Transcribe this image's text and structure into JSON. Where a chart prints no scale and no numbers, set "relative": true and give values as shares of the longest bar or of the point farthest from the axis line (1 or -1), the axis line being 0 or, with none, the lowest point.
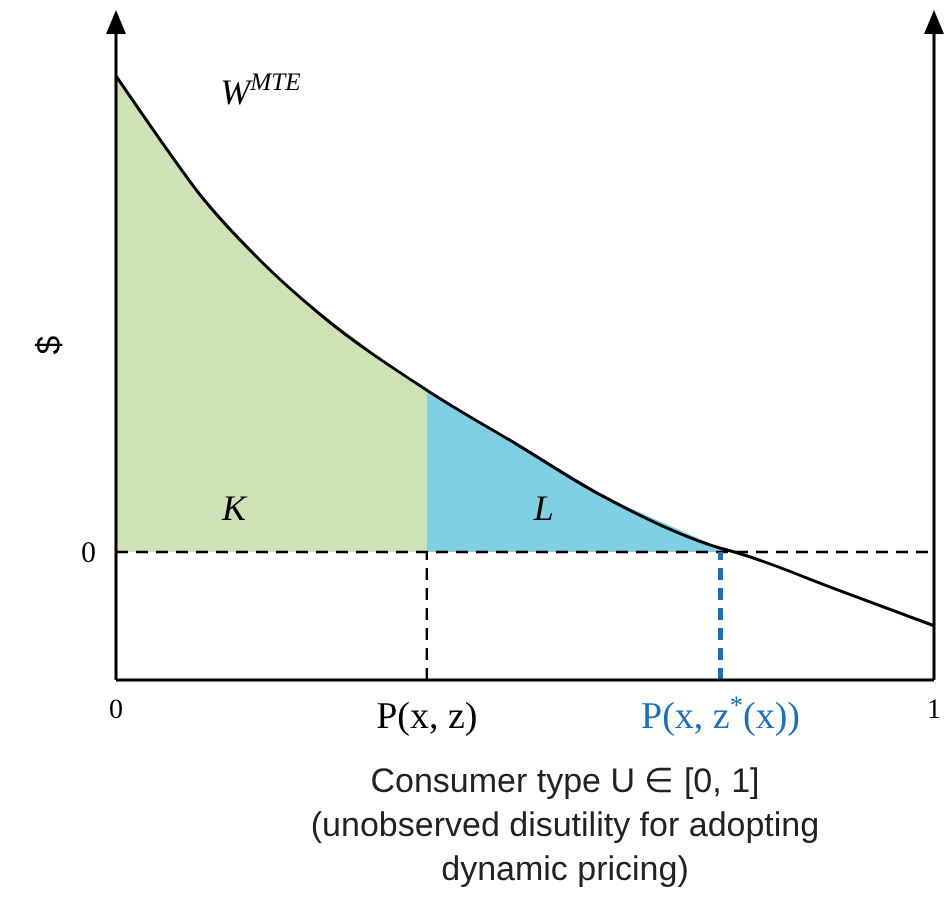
{
  "chart_data": {
    "type": "line",
    "relative": true,
    "ylabel": "$",
    "xlabel": "Consumer type U ∈ [0, 1]\n(unobserved disutility for adopting\ndynamic pricing)",
    "xlim": [
      0,
      1
    ],
    "xticks": [
      {
        "value": 0,
        "label": "0"
      },
      {
        "value": 0.38,
        "label": "P(x, z)"
      },
      {
        "value": 0.739,
        "label": "P(x, z$^{*}$(x))"
      },
      {
        "value": 1,
        "label": "1"
      }
    ],
    "series": [
      {
        "name": "K",
        "type": "area",
        "color": "#cde3b5",
        "x": [
          0,
          0.054,
          0.102,
          0.176,
          0.249,
          0.38
        ],
        "values": [
          1,
          0.866,
          0.752,
          0.613,
          0.5,
          0.34
        ]
      },
      {
        "name": "L",
        "type": "area",
        "color": "#7fd0e3",
        "x": [
          0.38,
          0.493,
          0.59,
          0.739,
          0.756
        ],
        "values": [
          0.34,
          0.223,
          0.122,
          0.008,
          0
        ]
      },
      {
        "name": "W$^{MTE}$",
        "type": "line",
        "color": "#000000",
        "x": [
          0,
          0.054,
          0.102,
          0.176,
          0.249,
          0.38,
          0.493,
          0.59,
          0.739,
          0.756,
          0.883,
          1
        ],
        "values": [
          1,
          0.866,
          0.752,
          0.613,
          0.5,
          0.34,
          0.223,
          0.122,
          0.008,
          0,
          -0.08,
          -0.155
        ]
      }
    ],
    "ref_lines": [
      {
        "axis": "y",
        "value": 0,
        "label": "0",
        "color": "#000000",
        "line_style": "dashed"
      },
      {
        "axis": "x",
        "value": 0.38,
        "color": "#000000",
        "line_style": "dashed"
      },
      {
        "axis": "x",
        "value": 0.739,
        "color": "#1f6fbf",
        "line_style": "dashed"
      }
    ]
  }
}
